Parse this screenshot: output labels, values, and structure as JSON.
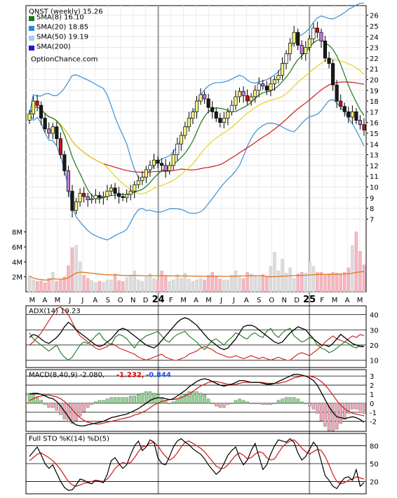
{
  "chart_data": [
    {
      "type": "candlestick",
      "panel": "price",
      "title": "QNST (weekly) 15.26",
      "watermark": "OptionChance.com",
      "legend": [
        {
          "label": "SMA(8) 16.10",
          "color": "#1a7a1a"
        },
        {
          "label": "SMA(20) 18.85",
          "color": "#2a8ad8"
        },
        {
          "label": "SMA(50) 19.19",
          "color": "#9fd0f0"
        },
        {
          "label": "SMA(200)",
          "color": "#1a1ad8"
        }
      ],
      "legend_placement": "top-left",
      "ylim": [
        6.5,
        26.5
      ],
      "yticks": [
        7,
        8,
        9,
        10,
        11,
        12,
        13,
        14,
        15,
        16,
        17,
        18,
        19,
        20,
        21,
        22,
        23,
        24,
        25,
        26
      ],
      "x_labels": [
        "M",
        "A",
        "M",
        "J",
        "J",
        "A",
        "S",
        "O",
        "N",
        "D",
        "24",
        "F",
        "M",
        "A",
        "M",
        "J",
        "J",
        "A",
        "S",
        "O",
        "N",
        "D",
        "25",
        "F",
        "M",
        "A",
        "M"
      ],
      "x_year_labels": [
        "24",
        "25"
      ],
      "close": [
        16.8,
        18.0,
        17.6,
        16.4,
        15.4,
        15.0,
        15.6,
        14.5,
        13.0,
        11.5,
        9.6,
        7.8,
        8.6,
        9.4,
        9.1,
        8.8,
        8.9,
        9.2,
        9.0,
        9.1,
        9.6,
        9.9,
        9.4,
        9.1,
        9.0,
        9.3,
        9.6,
        10.2,
        10.6,
        10.9,
        11.6,
        12.0,
        12.5,
        12.2,
        12.0,
        11.5,
        12.0,
        13.0,
        14.0,
        14.8,
        15.6,
        16.4,
        17.0,
        18.0,
        18.6,
        18.2,
        17.4,
        17.0,
        16.4,
        16.0,
        16.4,
        17.0,
        17.6,
        18.4,
        18.9,
        18.5,
        18.0,
        18.4,
        19.0,
        19.6,
        19.4,
        19.0,
        19.6,
        20.0,
        20.4,
        21.5,
        22.4,
        23.4,
        24.4,
        23.2,
        22.4,
        23.0,
        23.8,
        24.8,
        24.4,
        23.6,
        22.0,
        21.5,
        19.5,
        18.0,
        17.5,
        17.0,
        16.5,
        17.0,
        16.2,
        15.8,
        15.3
      ],
      "ma8_last": 16.1,
      "ma20_last": 18.85,
      "ma50_last": 19.19,
      "ma200_last": null
    },
    {
      "type": "bar",
      "panel": "volume",
      "yticks_labels": [
        "2M",
        "4M",
        "6M",
        "8M"
      ],
      "yticks": [
        2,
        4,
        6,
        8
      ],
      "ylim": [
        0,
        9
      ],
      "values": [
        2.1,
        1.6,
        1.4,
        1.5,
        1.2,
        1.8,
        2.6,
        1.4,
        1.6,
        2.0,
        3.5,
        5.9,
        6.2,
        4.0,
        2.2,
        1.8,
        1.5,
        1.2,
        1.4,
        1.3,
        1.6,
        1.6,
        2.4,
        1.5,
        1.4,
        1.9,
        2.2,
        2.8,
        1.6,
        1.4,
        2.0,
        2.4,
        1.8,
        1.6,
        2.8,
        2.2,
        1.4,
        1.6,
        2.3,
        1.8,
        2.5,
        1.7,
        1.4,
        1.6,
        1.8,
        1.6,
        2.2,
        2.6,
        2.0,
        1.7,
        1.6,
        1.6,
        2.2,
        2.8,
        2.0,
        1.8,
        2.6,
        2.4,
        2.2,
        2.0,
        2.3,
        2.1,
        3.4,
        5.3,
        2.8,
        4.4,
        2.5,
        3.2,
        1.8,
        2.4,
        2.6,
        2.5,
        4.0,
        3.4,
        2.6,
        2.6,
        2.2,
        2.4,
        2.6,
        2.5,
        2.4,
        2.6,
        3.2,
        6.2,
        8.0,
        5.4,
        3.6
      ],
      "ma_last": 2.9
    },
    {
      "type": "line",
      "panel": "adx",
      "label": "ADX(14) 19.23",
      "ylim": [
        7,
        44
      ],
      "yticks": [
        10,
        20,
        30,
        40
      ],
      "adx": [
        25,
        27,
        26,
        24,
        22,
        21,
        23,
        25,
        28,
        32,
        35,
        33,
        30,
        28,
        26,
        24,
        22,
        20,
        19,
        20,
        22,
        24,
        27,
        30,
        31,
        30,
        28,
        26,
        24,
        22,
        20,
        19,
        18,
        20,
        23,
        26,
        29,
        32,
        35,
        37,
        38,
        37,
        35,
        33,
        30,
        27,
        24,
        22,
        20,
        18,
        17,
        18,
        21,
        24,
        28,
        32,
        33,
        33,
        32,
        30,
        28,
        26,
        24,
        22,
        21,
        22,
        25,
        28,
        30,
        32,
        31,
        30,
        27,
        24,
        22,
        20,
        20,
        19,
        21,
        24,
        27,
        25,
        23,
        21,
        20,
        19,
        19
      ],
      "di_plus": [
        28,
        24,
        22,
        20,
        18,
        16,
        18,
        20,
        15,
        12,
        10,
        12,
        16,
        20,
        22,
        21,
        23,
        26,
        28,
        24,
        22,
        20,
        25,
        27,
        26,
        24,
        21,
        18,
        22,
        24,
        26,
        27,
        28,
        29,
        26,
        23,
        22,
        25,
        27,
        28,
        29,
        26,
        24,
        22,
        19,
        17,
        20,
        23,
        24,
        22,
        20,
        23,
        25,
        28,
        27,
        25,
        24,
        27,
        28,
        26,
        25,
        29,
        31,
        27,
        25,
        28,
        30,
        31,
        26,
        24,
        22,
        23,
        25,
        24,
        20,
        18,
        17,
        15,
        16,
        18,
        20,
        22,
        21,
        19,
        18,
        20,
        19
      ],
      "di_minus": [
        20,
        22,
        25,
        28,
        32,
        36,
        40,
        44,
        45,
        43,
        40,
        35,
        30,
        26,
        24,
        22,
        20,
        18,
        17,
        18,
        19,
        21,
        20,
        18,
        17,
        16,
        15,
        14,
        12,
        11,
        10,
        11,
        12,
        13,
        14,
        12,
        11,
        10,
        10,
        11,
        12,
        14,
        15,
        16,
        18,
        19,
        18,
        17,
        15,
        14,
        13,
        12,
        12,
        13,
        12,
        11,
        12,
        13,
        12,
        11,
        12,
        11,
        10,
        11,
        12,
        11,
        10,
        10,
        12,
        14,
        15,
        14,
        13,
        15,
        17,
        19,
        22,
        24,
        26,
        24,
        23,
        22,
        24,
        26,
        25,
        27,
        26
      ]
    },
    {
      "type": "line",
      "panel": "macd",
      "label": "MACD(8,40,9) -2.080,",
      "macd_value": "-1.232,",
      "signal_value": "-0.844",
      "ylim": [
        -2.8,
        3.4
      ],
      "yticks": [
        -2,
        -1,
        0,
        1,
        2,
        3
      ],
      "macd": [
        1.0,
        1.1,
        1.1,
        1.0,
        0.8,
        0.6,
        0.5,
        0.2,
        -0.3,
        -0.9,
        -1.5,
        -2.1,
        -2.4,
        -2.5,
        -2.5,
        -2.4,
        -2.3,
        -2.2,
        -2.1,
        -2.0,
        -1.8,
        -1.6,
        -1.5,
        -1.4,
        -1.3,
        -1.2,
        -1.0,
        -0.8,
        -0.6,
        -0.3,
        0.0,
        0.3,
        0.5,
        0.6,
        0.6,
        0.5,
        0.4,
        0.5,
        0.8,
        1.1,
        1.4,
        1.8,
        2.1,
        2.4,
        2.6,
        2.7,
        2.6,
        2.4,
        2.2,
        2.0,
        1.9,
        2.0,
        2.1,
        2.3,
        2.5,
        2.5,
        2.4,
        2.3,
        2.3,
        2.3,
        2.2,
        2.1,
        2.1,
        2.2,
        2.4,
        2.6,
        2.8,
        3.0,
        3.2,
        3.2,
        3.1,
        3.0,
        2.8,
        2.5,
        2.0,
        1.2,
        0.4,
        -0.4,
        -1.0,
        -1.5,
        -1.6,
        -1.7,
        -1.6,
        -1.5,
        -1.6,
        -1.8,
        -2.1
      ],
      "signal": [
        0.3,
        0.5,
        0.7,
        0.8,
        0.9,
        0.9,
        0.8,
        0.7,
        0.5,
        0.2,
        -0.2,
        -0.7,
        -1.2,
        -1.6,
        -1.9,
        -2.1,
        -2.2,
        -2.3,
        -2.3,
        -2.2,
        -2.1,
        -2.0,
        -1.9,
        -1.8,
        -1.7,
        -1.6,
        -1.5,
        -1.3,
        -1.2,
        -1.0,
        -0.8,
        -0.5,
        -0.2,
        0.0,
        0.2,
        0.3,
        0.4,
        0.4,
        0.5,
        0.6,
        0.8,
        1.0,
        1.3,
        1.6,
        1.9,
        2.1,
        2.3,
        2.4,
        2.4,
        2.3,
        2.2,
        2.1,
        2.1,
        2.1,
        2.2,
        2.3,
        2.3,
        2.3,
        2.3,
        2.3,
        2.3,
        2.2,
        2.2,
        2.2,
        2.2,
        2.3,
        2.4,
        2.6,
        2.8,
        2.9,
        3.0,
        3.0,
        3.0,
        2.9,
        2.7,
        2.4,
        2.0,
        1.5,
        0.9,
        0.3,
        -0.2,
        -0.6,
        -0.9,
        -1.1,
        -1.2,
        -1.3,
        -1.4
      ]
    },
    {
      "type": "line",
      "panel": "stochastic",
      "label": "Full STO %K(14) %D(5)",
      "ylim": [
        4,
        96
      ],
      "yticks": [
        20,
        50,
        80
      ],
      "k": [
        62,
        70,
        78,
        65,
        50,
        42,
        48,
        34,
        20,
        10,
        5,
        6,
        14,
        24,
        22,
        18,
        16,
        22,
        20,
        18,
        32,
        55,
        60,
        50,
        42,
        48,
        65,
        80,
        88,
        72,
        78,
        90,
        86,
        60,
        50,
        48,
        62,
        78,
        88,
        92,
        86,
        82,
        75,
        70,
        66,
        58,
        48,
        40,
        32,
        38,
        50,
        64,
        72,
        78,
        60,
        48,
        56,
        72,
        84,
        62,
        40,
        48,
        66,
        80,
        90,
        88,
        86,
        92,
        86,
        68,
        56,
        62,
        74,
        86,
        78,
        54,
        30,
        22,
        12,
        8,
        18,
        26,
        28,
        22,
        40,
        12,
        18
      ],
      "d": [
        55,
        60,
        66,
        68,
        64,
        60,
        55,
        48,
        40,
        30,
        20,
        14,
        12,
        14,
        17,
        18,
        20,
        22,
        21,
        20,
        24,
        32,
        42,
        48,
        52,
        50,
        52,
        60,
        70,
        78,
        80,
        84,
        86,
        80,
        70,
        62,
        56,
        60,
        68,
        78,
        86,
        88,
        84,
        80,
        76,
        70,
        62,
        54,
        46,
        42,
        42,
        48,
        56,
        64,
        68,
        64,
        58,
        60,
        66,
        70,
        68,
        60,
        56,
        58,
        68,
        78,
        84,
        88,
        90,
        84,
        76,
        70,
        66,
        70,
        74,
        72,
        62,
        48,
        32,
        20,
        16,
        18,
        22,
        24,
        28,
        26,
        24
      ]
    }
  ]
}
